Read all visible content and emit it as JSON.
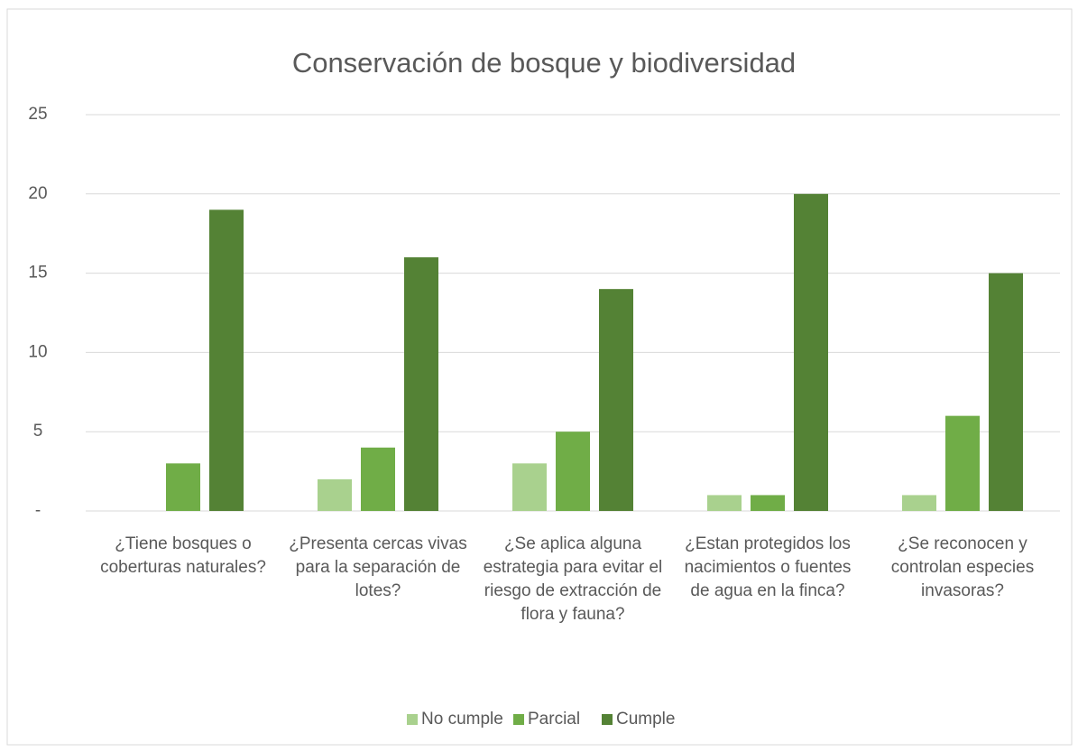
{
  "chart_data": {
    "type": "bar",
    "title": "Conservación de bosque y biodiversidad",
    "categories": [
      "¿Tiene bosques o coberturas naturales?",
      "¿Presenta cercas vivas para la separación de lotes?",
      "¿Se aplica alguna estrategia para evitar el riesgo de extracción de flora y fauna?",
      "¿Estan protegidos los nacimientos o fuentes de agua en la finca?",
      "¿Se reconocen y controlan especies invasoras?"
    ],
    "series": [
      {
        "name": "No cumple",
        "color": "#a9d18e",
        "values": [
          0,
          2,
          3,
          1,
          1
        ]
      },
      {
        "name": "Parcial",
        "color": "#70ad47",
        "values": [
          3,
          4,
          5,
          1,
          6
        ]
      },
      {
        "name": "Cumple",
        "color": "#548235",
        "values": [
          19,
          16,
          14,
          20,
          15
        ]
      }
    ],
    "ylim": [
      0,
      25
    ],
    "yticks": [
      {
        "value": 0,
        "label": "-"
      },
      5,
      10,
      15,
      20,
      25
    ],
    "grid": true,
    "legend": "bottom"
  }
}
